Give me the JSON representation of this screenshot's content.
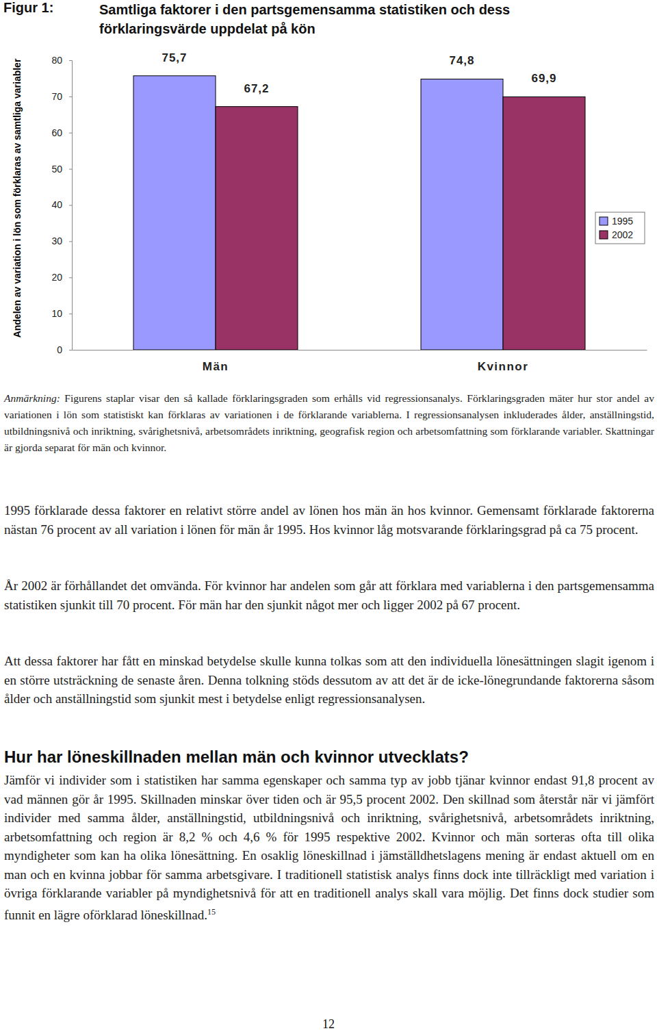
{
  "chart_data": {
    "type": "bar",
    "title": "Samtliga faktorer i den partsgemensamma statistiken och dess förklaringsvärde uppdelat på kön",
    "y_label": "Andelen av variation i lön som förklaras av samtliga variabler",
    "categories": [
      "Män",
      "Kvinnor"
    ],
    "series": [
      {
        "name": "1995",
        "color": "#9999ff",
        "values": [
          75.7,
          74.8
        ],
        "value_labels": [
          "75,7",
          "74,8"
        ]
      },
      {
        "name": "2002",
        "color": "#993366",
        "values": [
          67.2,
          69.9
        ],
        "value_labels": [
          "67,2",
          "69,9"
        ]
      }
    ],
    "ylim": [
      0,
      80
    ],
    "yticks": [
      0,
      10,
      20,
      30,
      40,
      50,
      60,
      70,
      80
    ],
    "grid": false,
    "legend": "right",
    "data_labels": true
  },
  "document": {
    "figure_label": "Figur 1:",
    "note_label": "Anmärkning:",
    "note_text": " Figurens staplar visar den så kallade förklaringsgraden som erhålls vid regressionsanalys. Förklaringsgraden mäter hur stor andel av variationen i lön som statistiskt kan förklaras av variationen i de förklarande variablerna. I regressionsanalysen inkluderades ålder, anställningstid, utbildningsnivå och inriktning, svårighetsnivå, arbetsområdets inriktning, geografisk region och arbetsomfattning som förklarande variabler. Skattningar är gjorda separat för män och kvinnor.",
    "paragraphs": [
      "1995 förklarade dessa faktorer en relativt större andel av lönen hos män än hos kvinnor. Gemensamt förklarade faktorerna nästan 76 procent av all variation i lönen för män år 1995. Hos kvinnor låg motsvarande förklaringsgrad på ca 75 procent.",
      "År 2002 är förhållandet det omvända. För kvinnor har andelen som går att förklara med variablerna i den partsgemensamma statistiken sjunkit till 70 procent. För män har den sjunkit något mer och ligger 2002 på 67 procent.",
      "Att dessa faktorer har fått en minskad betydelse skulle kunna tolkas som att den individuella lönesättningen slagit igenom i en större utsträckning de senaste åren. Denna tolkning stöds dessutom av att det är de icke-lönegrundande faktorerna såsom ålder och anställningstid som sjunkit mest i betydelse enligt regressionsanalysen.",
      "Jämför vi individer som i statistiken har samma egenskaper och samma typ av jobb tjänar kvinnor endast 91,8 procent av vad männen gör år 1995. Skillnaden minskar över tiden och är 95,5 procent 2002. Den skillnad som återstår när vi jämfört individer med samma ålder, anställningstid, utbildningsnivå och inriktning, svårighetsnivå, arbetsområdets inriktning, arbetsomfattning och region är 8,2 % och 4,6 % för 1995 respektive 2002. Kvinnor och män sorteras ofta till olika myndigheter som kan ha olika lönesättning. En osaklig löneskillnad i jämställdhetslagens mening är endast aktuell om en man och en kvinna jobbar för samma arbetsgivare. I traditionell statistisk analys finns dock inte tillräckligt med variation i övriga förklarande variabler på myndighetsnivå för att en traditionell analys skall vara möjlig. Det finns dock studier som funnit en lägre oförklarad löneskillnad."
    ],
    "heading": "Hur har löneskillnaden mellan män och kvinnor utvecklats?",
    "footnote_ref": "15",
    "page_number": "12"
  }
}
